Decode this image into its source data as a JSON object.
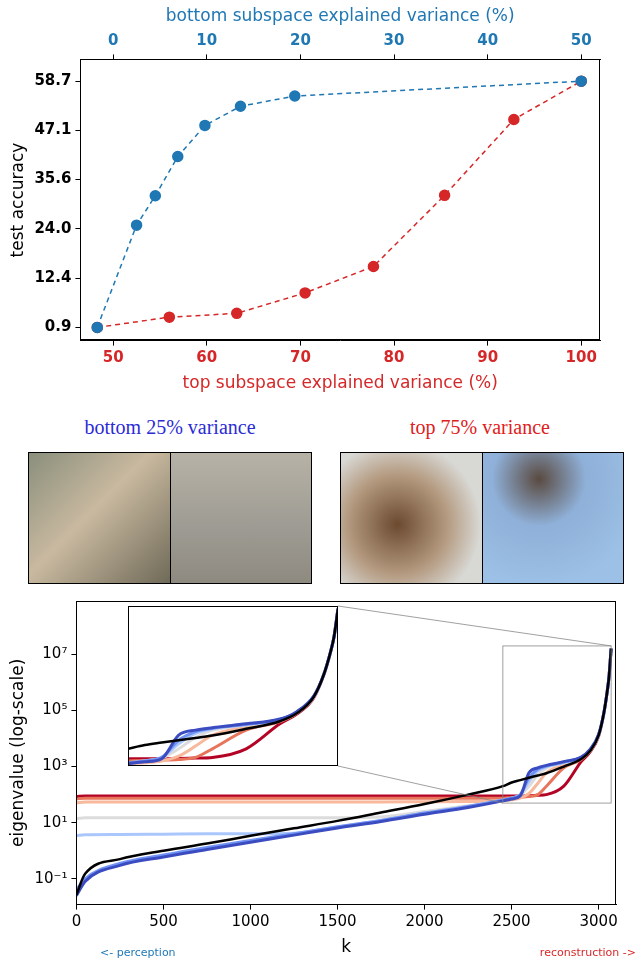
{
  "chart_data": [
    {
      "type": "scatter",
      "ylabel": "test accuracy",
      "xlabel": "top subspace explained variance (%)",
      "x2label": "bottom subspace explained variance (%)",
      "series": [
        {
          "color": "#1f77b4",
          "axis": "x2",
          "line_style": "dashed",
          "marker": "circle",
          "x": [
            -1.7,
            2.5,
            4.5,
            6.9,
            9.8,
            13.6,
            19.4,
            50
          ],
          "values": [
            0.9,
            24.9,
            31.8,
            41,
            48.3,
            52.8,
            55.2,
            58.7
          ]
        },
        {
          "color": "#d62728",
          "line_style": "dashed",
          "marker": "circle",
          "x": [
            48.3,
            56,
            63.2,
            70.5,
            77.8,
            85.4,
            92.8,
            100
          ],
          "values": [
            0.9,
            3.3,
            4.2,
            9,
            15.2,
            31.9,
            49.7,
            58.7
          ]
        }
      ],
      "xlim": [
        46.5,
        102
      ],
      "xticks": [
        50,
        60,
        70,
        80,
        90,
        100
      ],
      "x2lim": [
        -3.5,
        52
      ],
      "x2ticks": [
        0,
        10,
        20,
        30,
        40,
        50
      ],
      "ylim": [
        -2.2,
        63.8
      ],
      "yticks": [
        0.9,
        12.4,
        {
          "value": 24,
          "label": "24.0"
        },
        35.6,
        47.1,
        58.7
      ],
      "grid": false
    },
    {
      "type": "line",
      "log": "y",
      "xlabel": "k",
      "ylabel": "eigenvalue (log-scale)",
      "x": [
        0,
        50,
        250,
        500,
        750,
        1000,
        1250,
        1500,
        1750,
        2000,
        2250,
        2450,
        2500,
        2550,
        2600,
        2650,
        2700,
        2800,
        2900,
        2950,
        3000,
        3030,
        3050,
        3060,
        3072
      ],
      "series": [
        {
          "color": "#000000",
          "values": [
            0.027,
            0.15,
            0.5,
            1.0,
            1.8,
            3.4,
            6.3,
            11.6,
            23,
            46,
            100,
            200,
            270,
            330,
            400,
            480,
            580,
            1000,
            1850,
            3500,
            13000,
            80000,
            500000,
            1600000,
            16000000
          ]
        },
        {
          "color": "#3b4cc0",
          "values": [
            0.025,
            0.08,
            0.3,
            0.6,
            1.1,
            2.0,
            3.6,
            6.5,
            11,
            20,
            35,
            60,
            70,
            90,
            600,
            900,
            1100,
            1500,
            2200,
            4000,
            14000,
            80000,
            500000,
            1600000,
            16000000
          ]
        },
        {
          "color": "#7092f3",
          "values": [
            0.04,
            0.1,
            0.35,
            0.7,
            1.3,
            2.3,
            4,
            7.2,
            12,
            22,
            38,
            65,
            75,
            100,
            400,
            800,
            1050,
            1450,
            2150,
            3900,
            13500,
            80000,
            500000,
            1600000,
            16000000
          ]
        },
        {
          "color": "#aac7fd",
          "values": [
            3.5,
            3.7,
            3.8,
            3.9,
            4,
            4,
            4.2,
            7,
            12,
            22,
            38,
            62,
            75,
            100,
            300,
            700,
            1000,
            1400,
            2100,
            3800,
            13000,
            80000,
            500000,
            1600000,
            16000000
          ]
        },
        {
          "color": "#dddcdc",
          "values": [
            14,
            15,
            15,
            15,
            15,
            15,
            15,
            15,
            16,
            25,
            40,
            65,
            75,
            95,
            200,
            500,
            900,
            1350,
            2000,
            3700,
            13000,
            80000,
            500000,
            1600000,
            16000000
          ]
        },
        {
          "color": "#f7b89c",
          "values": [
            50,
            55,
            55,
            55,
            55,
            55,
            55,
            55,
            55,
            56,
            57,
            60,
            65,
            75,
            110,
            250,
            600,
            1200,
            1900,
            3600,
            13000,
            80000,
            500000,
            1600000,
            16000000
          ]
        },
        {
          "color": "#e7745b",
          "values": [
            70,
            75,
            75,
            75,
            75,
            75,
            75,
            75,
            75,
            75,
            75,
            75,
            78,
            80,
            85,
            100,
            200,
            900,
            1800,
            3500,
            13000,
            80000,
            500000,
            1600000,
            16000000
          ]
        },
        {
          "color": "#b40426",
          "values": [
            85,
            90,
            90,
            90,
            90,
            90,
            90,
            90,
            90,
            90,
            90,
            90,
            90,
            90,
            92,
            95,
            100,
            200,
            1500,
            3300,
            12000,
            80000,
            500000,
            1600000,
            16000000
          ]
        }
      ],
      "xlim": [
        0,
        3100
      ],
      "xticks": [
        0,
        500,
        1000,
        1500,
        2000,
        2500,
        3000
      ],
      "ylim": [
        0.012,
        800000000
      ],
      "yticks": [
        {
          "value": 0.1,
          "label": "10⁻¹"
        },
        {
          "value": 10,
          "label": "10¹"
        },
        {
          "value": 1000,
          "label": "10³"
        },
        {
          "value": 100000,
          "label": "10⁵"
        },
        {
          "value": 10000000,
          "label": "10⁷"
        }
      ],
      "grid": false,
      "annotations": [
        {
          "text": "<- perception",
          "color": "#1f77b4"
        },
        {
          "text": "reconstruction ->",
          "color": "#d62728"
        }
      ]
    },
    {
      "type": "line",
      "log": "y",
      "tick_labels": false,
      "x": [
        2450,
        2500,
        2550,
        2600,
        2650,
        2700,
        2800,
        2900,
        2950,
        3000,
        3030,
        3050,
        3060,
        3072
      ],
      "series": [
        {
          "color": "#000000",
          "values": [
            200,
            270,
            330,
            400,
            480,
            580,
            1000,
            1850,
            3500,
            13000,
            80000,
            500000,
            1600000,
            16000000
          ]
        },
        {
          "color": "#3b4cc0",
          "values": [
            60,
            70,
            90,
            600,
            900,
            1100,
            1500,
            2200,
            4000,
            14000,
            80000,
            500000,
            1600000,
            16000000
          ]
        },
        {
          "color": "#7092f3",
          "values": [
            65,
            75,
            100,
            400,
            800,
            1050,
            1450,
            2150,
            3900,
            13500,
            80000,
            500000,
            1600000,
            16000000
          ]
        },
        {
          "color": "#aac7fd",
          "values": [
            62,
            75,
            100,
            300,
            700,
            1000,
            1400,
            2100,
            3800,
            13000,
            80000,
            500000,
            1600000,
            16000000
          ]
        },
        {
          "color": "#dddcdc",
          "values": [
            65,
            75,
            95,
            200,
            500,
            900,
            1350,
            2000,
            3700,
            13000,
            80000,
            500000,
            1600000,
            16000000
          ]
        },
        {
          "color": "#f7b89c",
          "values": [
            60,
            65,
            75,
            110,
            250,
            600,
            1200,
            1900,
            3600,
            13000,
            80000,
            500000,
            1600000,
            16000000
          ]
        },
        {
          "color": "#e7745b",
          "values": [
            75,
            78,
            80,
            85,
            100,
            200,
            900,
            1800,
            3500,
            13000,
            80000,
            500000,
            1600000,
            16000000
          ]
        },
        {
          "color": "#b40426",
          "values": [
            90,
            90,
            90,
            92,
            95,
            100,
            200,
            1500,
            3300,
            12000,
            80000,
            500000,
            1600000,
            16000000
          ]
        }
      ],
      "xlim": [
        2450,
        3072
      ],
      "ylim": [
        50,
        20000000
      ],
      "grid": false
    }
  ],
  "captions": [
    {
      "text": "bottom 25% variance",
      "color": "#2b2bd6"
    },
    {
      "text": "top 75% variance",
      "color": "#e02020"
    }
  ]
}
